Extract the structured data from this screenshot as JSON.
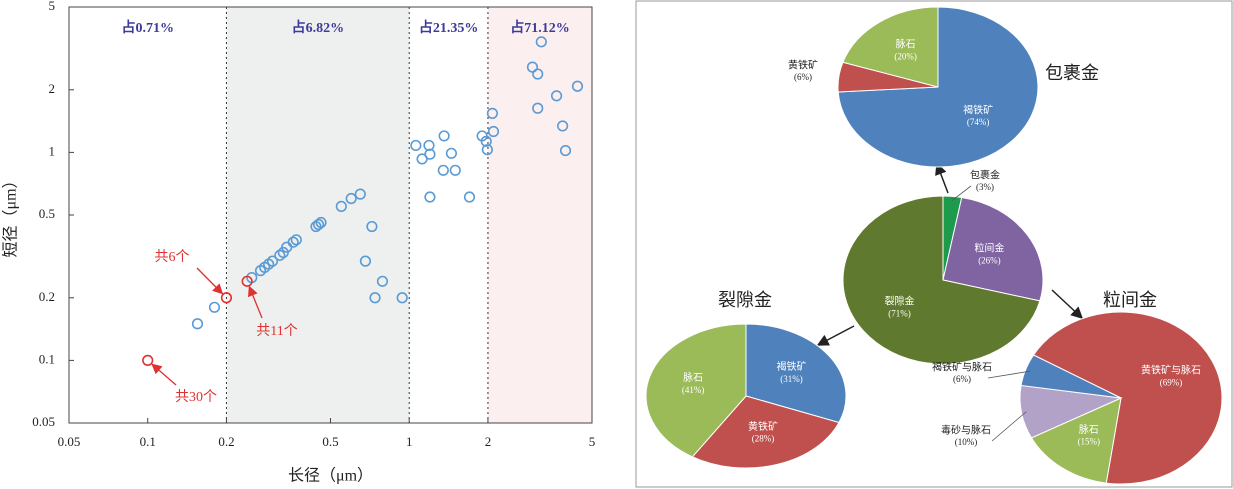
{
  "chart_data": [
    {
      "type": "scatter",
      "xlabel": "长径（μm）",
      "ylabel": "短径（μm）",
      "xscale": "log",
      "yscale": "log",
      "xlim": [
        0.05,
        5
      ],
      "ylim": [
        0.05,
        5
      ],
      "xticks": [
        0.05,
        0.1,
        0.2,
        0.5,
        1,
        2,
        5
      ],
      "yticks": [
        0.05,
        0.1,
        0.2,
        0.5,
        1,
        2,
        5
      ],
      "regions": [
        {
          "xlim": [
            0.05,
            0.2
          ],
          "label": "占0.71%",
          "color": "#ffffff"
        },
        {
          "xlim": [
            0.2,
            1
          ],
          "label": "占6.82%",
          "color": "#eef0ef"
        },
        {
          "xlim": [
            1,
            2
          ],
          "label": "占21.35%",
          "color": "#ffffff"
        },
        {
          "xlim": [
            2,
            5
          ],
          "label": "占71.12%",
          "color": "#fcefef"
        }
      ],
      "series": [
        {
          "color": "#5b9bd5",
          "x": [
            0.155,
            0.18,
            0.25,
            0.27,
            0.28,
            0.29,
            0.3,
            0.32,
            0.33,
            0.34,
            0.36,
            0.37,
            0.44,
            0.45,
            0.46,
            0.55,
            0.6,
            0.65,
            0.72,
            0.68,
            0.79,
            0.74,
            0.94,
            1.06,
            1.12,
            1.19,
            1.2,
            1.2,
            1.35,
            1.36,
            1.45,
            1.5,
            1.7,
            1.9,
            1.97,
            1.99,
            2.08,
            2.1,
            2.96,
            3.1,
            3.2,
            3.1,
            3.66,
            3.86,
            3.96,
            4.4
          ],
          "values": [
            0.15,
            0.18,
            0.25,
            0.27,
            0.28,
            0.29,
            0.3,
            0.32,
            0.33,
            0.35,
            0.37,
            0.38,
            0.44,
            0.45,
            0.46,
            0.55,
            0.6,
            0.63,
            0.44,
            0.3,
            0.24,
            0.2,
            0.2,
            1.08,
            0.93,
            1.08,
            0.98,
            0.61,
            0.82,
            1.2,
            0.99,
            0.82,
            0.61,
            1.2,
            1.13,
            1.03,
            1.54,
            1.26,
            2.57,
            2.38,
            3.4,
            1.63,
            1.87,
            1.34,
            1.02,
            2.08
          ]
        },
        {
          "color": "#e0302f",
          "x": [
            0.1,
            0.2,
            0.24
          ],
          "values": [
            0.1,
            0.2,
            0.24
          ]
        }
      ],
      "annotations": [
        "共30个",
        "共6个",
        "共11个"
      ]
    },
    {
      "type": "pie",
      "title": "包裹金",
      "start_angle": 0,
      "categories": [
        "褐铁矿",
        "黄铁矿",
        "脉石"
      ],
      "values": [
        74,
        6,
        20
      ],
      "value_labels": [
        "(74%)",
        "(6%)",
        "(20%)"
      ],
      "colors": [
        "#4f81bd",
        "#c0504d",
        "#9bbb59"
      ]
    },
    {
      "type": "pie",
      "start_angle": 0,
      "categories": [
        "包裹金",
        "粒间金",
        "裂隙金"
      ],
      "values": [
        3,
        26,
        71
      ],
      "value_labels": [
        "(3%)",
        "(26%)",
        "(71%)"
      ],
      "colors": [
        "#1e9a4c",
        "#8064a2",
        "#5f7a2e"
      ]
    },
    {
      "type": "pie",
      "title": "裂隙金",
      "start_angle": 0,
      "categories": [
        "褐铁矿",
        "黄铁矿",
        "脉石"
      ],
      "values": [
        31,
        28,
        41
      ],
      "value_labels": [
        "(31%)",
        "(28%)",
        "(41%)"
      ],
      "colors": [
        "#4f81bd",
        "#c0504d",
        "#9bbb59"
      ]
    },
    {
      "type": "pie",
      "title": "粒间金",
      "start_angle": 300,
      "categories": [
        "黄铁矿与脉石",
        "脉石",
        "毒砂与脉石",
        "褐铁矿与脉石"
      ],
      "values": [
        69,
        15,
        10,
        6
      ],
      "value_labels": [
        "(69%)",
        "(15%)",
        "(10%)",
        "(6%)"
      ],
      "colors": [
        "#c0504d",
        "#9bbb59",
        "#b3a2c7",
        "#4f81bd"
      ]
    }
  ]
}
